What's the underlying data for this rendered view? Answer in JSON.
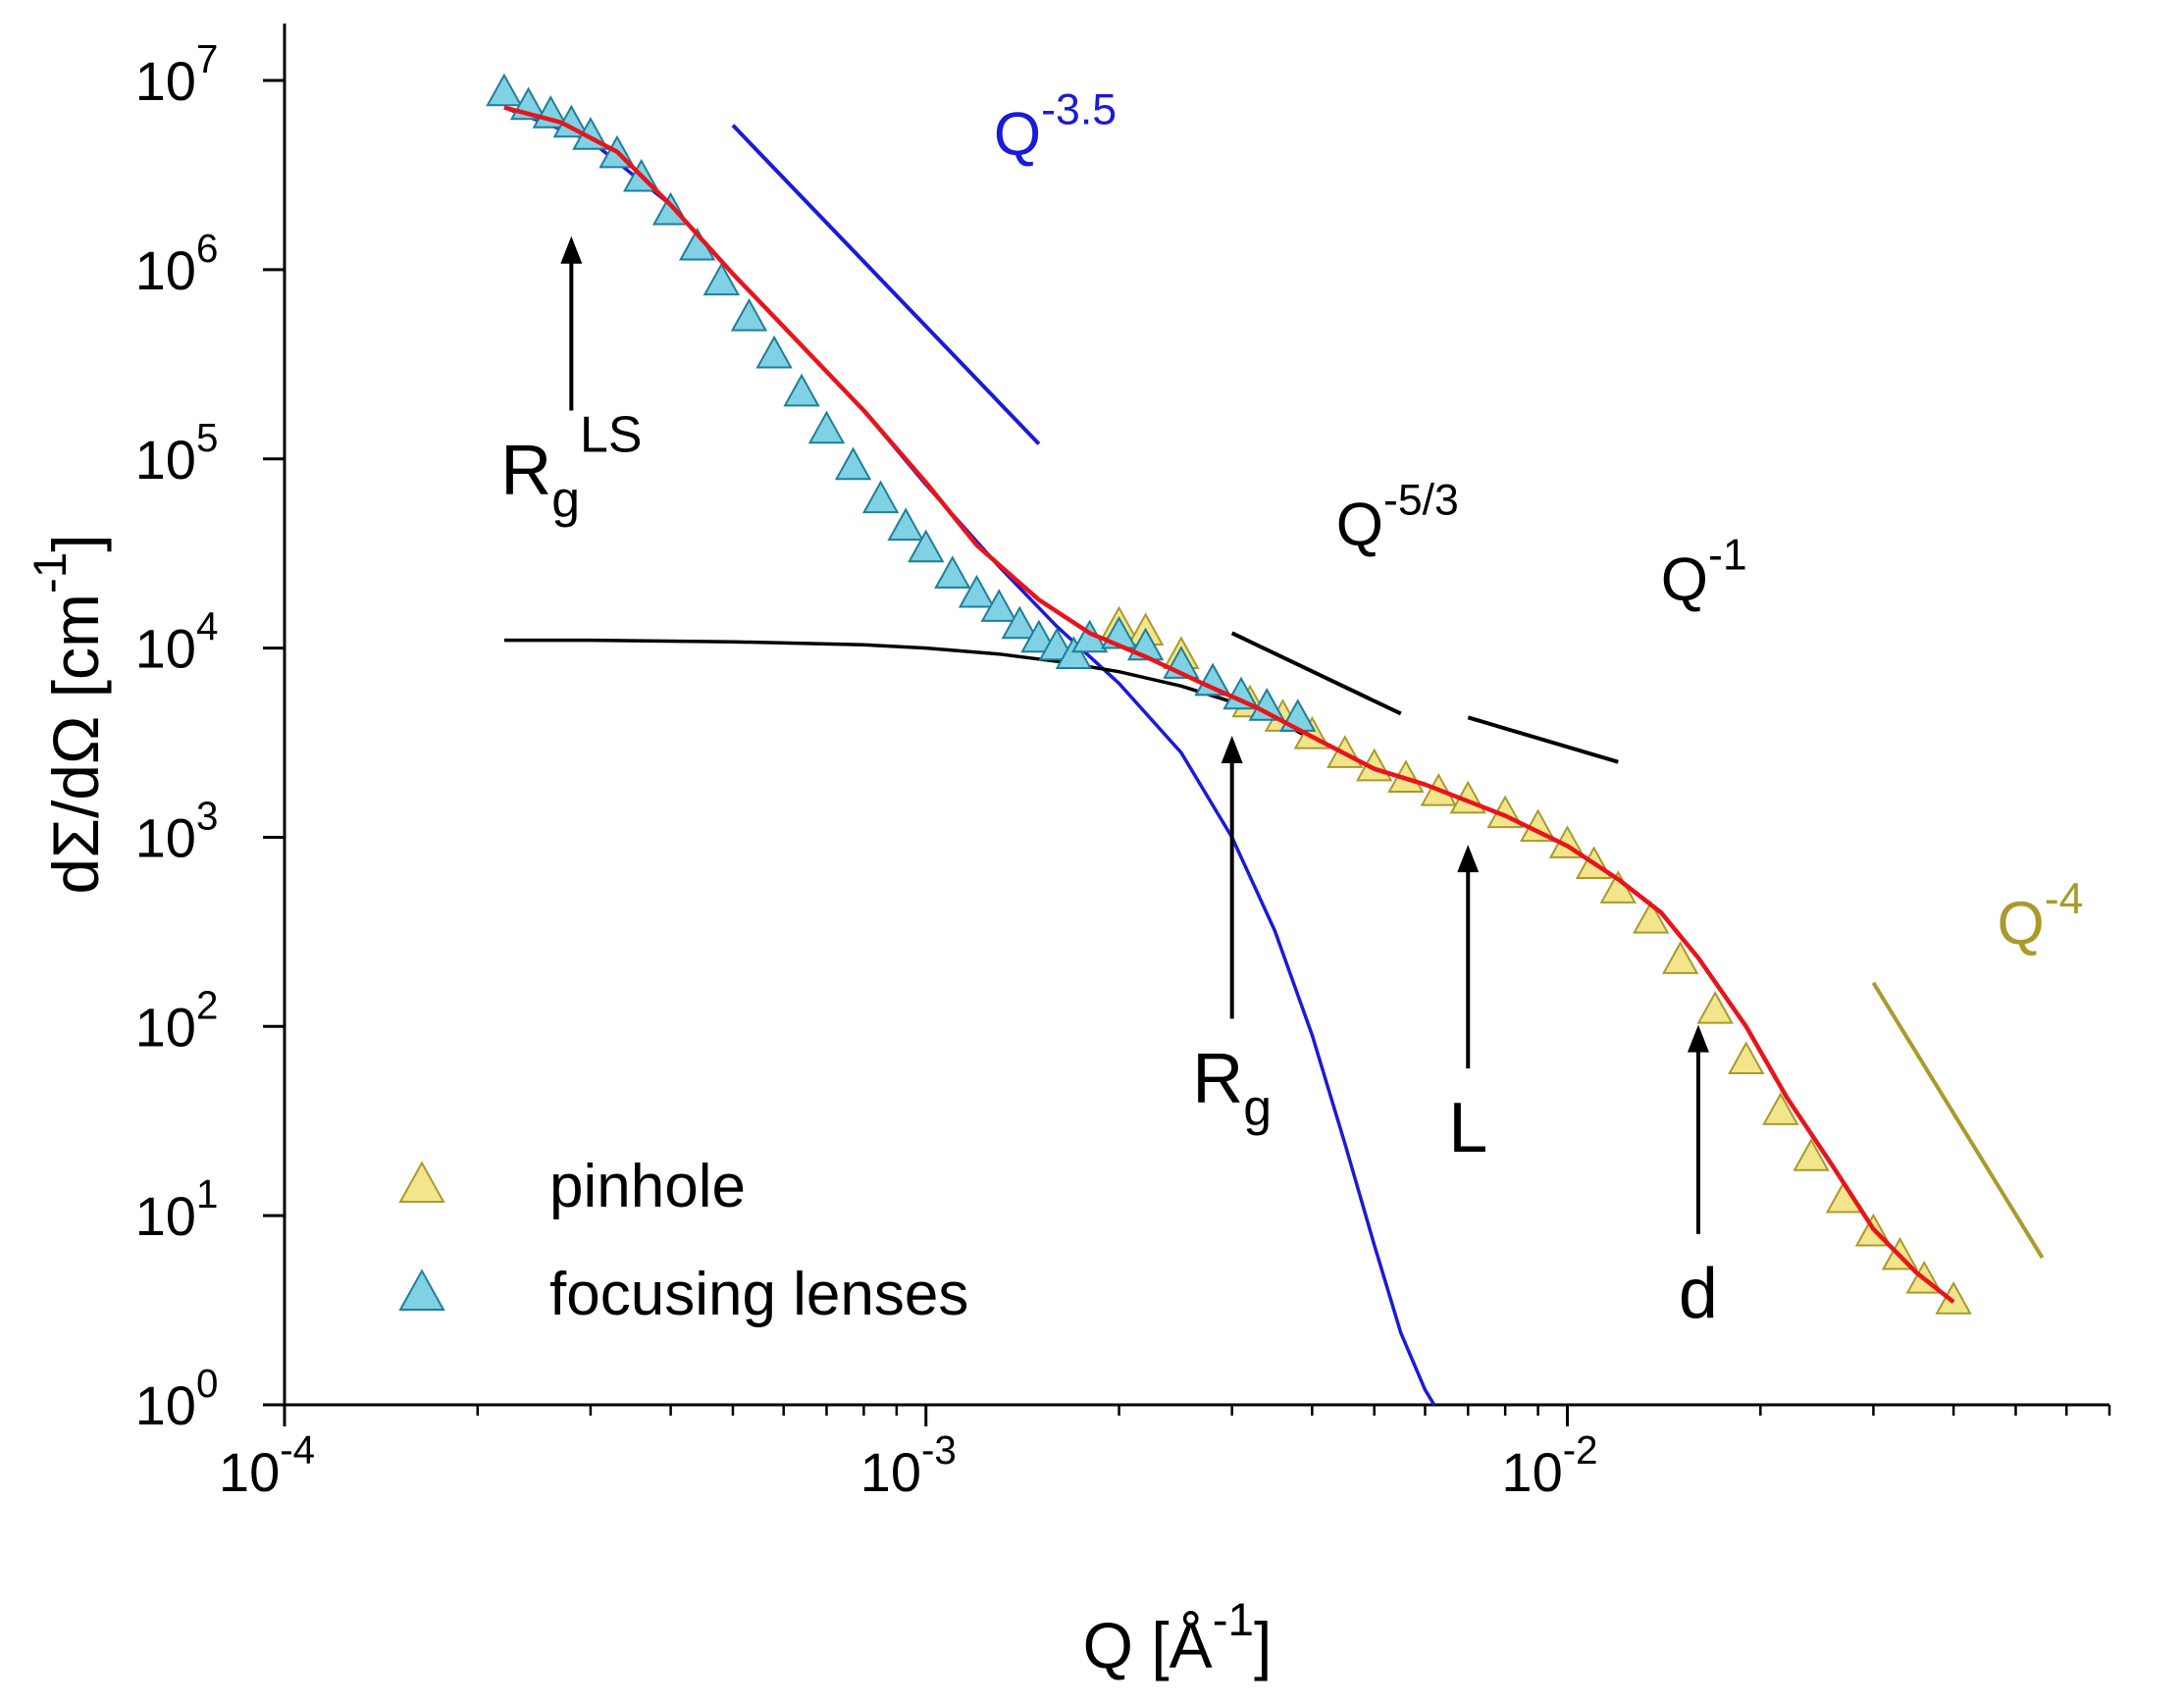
{
  "chart_data": {
    "type": "scatter",
    "x_scale": "log",
    "y_scale": "log",
    "xlim": [
      0.0001,
      0.07
    ],
    "ylim": [
      1,
      20000000
    ],
    "xlabel": {
      "main": "Q [Å",
      "sup": "-1",
      "tail": "]"
    },
    "ylabel": {
      "main": "dΣ/dΩ [cm",
      "sup": "-1",
      "tail": "]"
    },
    "x_ticks": [
      {
        "value": 0.0001,
        "base": "10",
        "exp": "-4"
      },
      {
        "value": 0.001,
        "base": "10",
        "exp": "-3"
      },
      {
        "value": 0.01,
        "base": "10",
        "exp": "-2"
      }
    ],
    "y_ticks": [
      {
        "value": 1,
        "base": "10",
        "exp": "0"
      },
      {
        "value": 10,
        "base": "10",
        "exp": "1"
      },
      {
        "value": 100,
        "base": "10",
        "exp": "2"
      },
      {
        "value": 1000,
        "base": "10",
        "exp": "3"
      },
      {
        "value": 10000,
        "base": "10",
        "exp": "4"
      },
      {
        "value": 100000,
        "base": "10",
        "exp": "5"
      },
      {
        "value": 1000000,
        "base": "10",
        "exp": "6"
      },
      {
        "value": 10000000,
        "base": "10",
        "exp": "7"
      }
    ],
    "grid": false,
    "legend_position": "bottom-left",
    "series": [
      {
        "name": "pinhole",
        "marker": "triangle",
        "color": "#f3e58c",
        "edge": "#a99a2a",
        "x": [
          0.002,
          0.0022,
          0.0025,
          0.0028,
          0.0032,
          0.0036,
          0.004,
          0.0045,
          0.005,
          0.0056,
          0.0063,
          0.007,
          0.008,
          0.009,
          0.01,
          0.011,
          0.012,
          0.0135,
          0.015,
          0.017,
          0.019,
          0.0215,
          0.024,
          0.027,
          0.03,
          0.033,
          0.036,
          0.04
        ],
        "y": [
          13000,
          12000,
          9000,
          6500,
          5000,
          4200,
          3400,
          2700,
          2300,
          2000,
          1700,
          1550,
          1300,
          1100,
          900,
          700,
          520,
          360,
          220,
          120,
          65,
          35,
          20,
          12,
          8,
          6,
          4.5,
          3.5
        ]
      },
      {
        "name": "focusing lenses",
        "marker": "triangle",
        "color": "#7fd1e3",
        "edge": "#1e7f9b",
        "x": [
          0.00022,
          0.00024,
          0.00026,
          0.00028,
          0.0003,
          0.00033,
          0.00036,
          0.0004,
          0.00044,
          0.00048,
          0.00053,
          0.00058,
          0.00064,
          0.0007,
          0.00077,
          0.00085,
          0.00093,
          0.001,
          0.0011,
          0.0012,
          0.0013,
          0.0014,
          0.0015,
          0.0016,
          0.0017,
          0.0018,
          0.002,
          0.0022,
          0.0025,
          0.0028,
          0.0031,
          0.0034,
          0.0038
        ],
        "y": [
          8500000,
          7200000,
          6500000,
          5800000,
          5000000,
          4000000,
          3000000,
          2000000,
          1300000,
          850000,
          550000,
          350000,
          220000,
          140000,
          90000,
          60000,
          43000,
          33000,
          24000,
          19000,
          16000,
          13000,
          11000,
          10000,
          9000,
          11000,
          11500,
          10000,
          8000,
          6500,
          5500,
          4800,
          4200
        ]
      }
    ],
    "lines": [
      {
        "name": "fit",
        "color": "#e8141b",
        "x": [
          0.00022,
          0.00027,
          0.00033,
          0.0004,
          0.0005,
          0.0006,
          0.0008,
          0.001,
          0.0012,
          0.0015,
          0.0018,
          0.0022,
          0.0027,
          0.0033,
          0.004,
          0.005,
          0.006,
          0.007,
          0.008,
          0.01,
          0.012,
          0.014,
          0.016,
          0.019,
          0.022,
          0.026,
          0.03,
          0.035,
          0.04
        ],
        "y": [
          7200000,
          6000000,
          4200000,
          2200000,
          950000,
          500000,
          180000,
          75000,
          35000,
          18000,
          12000,
          9000,
          6500,
          4800,
          3400,
          2300,
          1900,
          1550,
          1300,
          900,
          600,
          400,
          230,
          100,
          42,
          18,
          8.5,
          5,
          3.5
        ]
      },
      {
        "name": "Q^-3.5 component",
        "color": "#1a1ad8",
        "x": [
          0.00022,
          0.0003,
          0.0004,
          0.0005,
          0.0006,
          0.0008,
          0.001,
          0.0013,
          0.0016,
          0.002,
          0.0025,
          0.003,
          0.0035,
          0.004,
          0.0045,
          0.005,
          0.0055,
          0.006,
          0.0062
        ],
        "y": [
          7200000,
          4800000,
          2200000,
          950000,
          500000,
          180000,
          73000,
          27000,
          13000,
          6500,
          2800,
          1000,
          320,
          90,
          24,
          7,
          2.4,
          1.2,
          1
        ]
      },
      {
        "name": "Q^-5/3 component",
        "color": "#000000",
        "x": [
          0.00022,
          0.0003,
          0.0005,
          0.0008,
          0.001,
          0.0013,
          0.0016,
          0.002,
          0.0025,
          0.003,
          0.0035,
          0.004
        ],
        "y": [
          11000,
          11000,
          10800,
          10400,
          10000,
          9300,
          8500,
          7500,
          6300,
          5200,
          4200,
          3300
        ]
      }
    ],
    "guides": [
      {
        "label_base": "Q",
        "label_sup": "-3.5",
        "color": "#1a1ad8",
        "x": [
          0.0005,
          0.0015
        ],
        "y": [
          5800000,
          120000
        ]
      },
      {
        "label_base": "Q",
        "label_sup": "-5/3",
        "color": "#000000",
        "x": [
          0.003,
          0.0055
        ],
        "y": [
          12000,
          4500
        ]
      },
      {
        "label_base": "Q",
        "label_sup": "-1",
        "color": "#000000",
        "x": [
          0.007,
          0.012
        ],
        "y": [
          4300,
          2500
        ]
      },
      {
        "label_base": "Q",
        "label_sup": "-4",
        "color": "#a99a2a",
        "x": [
          0.03,
          0.055
        ],
        "y": [
          170,
          6
        ]
      }
    ],
    "annotations": [
      {
        "label": "R",
        "sub": "g",
        "sup": "LS",
        "arrow_x": 0.00028,
        "arrow_y": [
          1400000,
          180000
        ]
      },
      {
        "label": "R",
        "sub": "g",
        "sup": "",
        "arrow_x": 0.003,
        "arrow_y": [
          3200,
          110
        ]
      },
      {
        "label": "L",
        "sub": "",
        "sup": "",
        "arrow_x": 0.007,
        "arrow_y": [
          850,
          60
        ]
      },
      {
        "label": "d",
        "sub": "",
        "sup": "",
        "arrow_x": 0.016,
        "arrow_y": [
          95,
          8
        ]
      }
    ]
  }
}
